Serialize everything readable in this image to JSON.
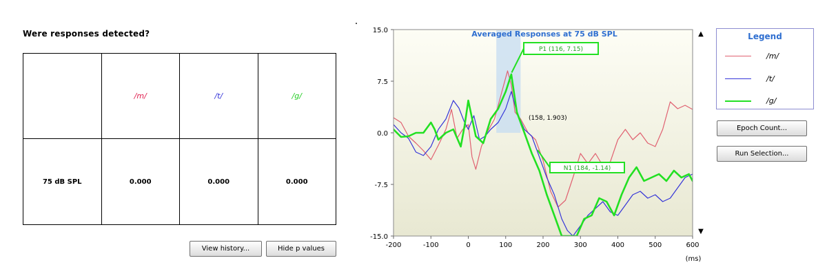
{
  "responses_panel": {
    "title": "Were responses detected?",
    "columns": [
      "",
      "/m/",
      "/t/",
      "/g/"
    ],
    "row_label": "75 dB SPL",
    "values": [
      "0.000",
      "0.000",
      "0.000"
    ]
  },
  "buttons": {
    "view_history": "View history...",
    "hide_p_values": "Hide p values",
    "epoch_count": "Epoch Count...",
    "run_selection": "Run Selection..."
  },
  "legend": {
    "title": "Legend",
    "items": [
      {
        "label": "/m/",
        "color": "#e06070"
      },
      {
        "label": "/t/",
        "color": "#3434d8"
      },
      {
        "label": "/g/",
        "color": "#22e022"
      }
    ]
  },
  "colors": {
    "m": "#e06070",
    "t": "#3434d8",
    "g": "#22e022",
    "chart_title": "#2f6fd0",
    "plot_bg_top": "#fdfdf5",
    "plot_bg_bottom": "#e8e8d2",
    "highlight": "#c6dcf2"
  },
  "scroll_icons": {
    "up": "▲",
    "down": "▼"
  },
  "chart_data": {
    "type": "line",
    "title": "Averaged Responses at 75 dB SPL",
    "xlabel": "(ms)",
    "ylabel": "",
    "xlim": [
      -200,
      600
    ],
    "ylim": [
      -15.0,
      15.0
    ],
    "xticks": [
      -200,
      -100,
      0,
      100,
      200,
      300,
      400,
      500,
      600
    ],
    "yticks": [
      -15.0,
      -7.5,
      0.0,
      7.5,
      15.0
    ],
    "ytick_labels": [
      "-15.0",
      "-7.5",
      "0.0",
      "7.5",
      "15.0"
    ],
    "highlight_region": [
      75,
      140
    ],
    "series": [
      {
        "name": "/m/",
        "color": "#e06070",
        "width": 1.2,
        "x": [
          -200,
          -180,
          -160,
          -140,
          -120,
          -100,
          -80,
          -60,
          -45,
          -30,
          -15,
          0,
          10,
          20,
          35,
          50,
          70,
          90,
          105,
          115,
          125,
          140,
          160,
          180,
          200,
          220,
          240,
          260,
          280,
          300,
          320,
          340,
          360,
          380,
          400,
          420,
          440,
          460,
          480,
          500,
          520,
          540,
          560,
          580,
          600
        ],
        "y": [
          2.2,
          1.5,
          -0.5,
          -1.5,
          -2.6,
          -3.9,
          -1.8,
          0.5,
          3.4,
          -0.8,
          0.5,
          1.2,
          -3.5,
          -5.3,
          -2.0,
          0.0,
          2.0,
          6.0,
          9.0,
          7.0,
          3.0,
          2.0,
          0.0,
          -1.0,
          -4.0,
          -8.5,
          -10.8,
          -9.8,
          -6.5,
          -3.0,
          -4.5,
          -3.0,
          -4.8,
          -4.2,
          -1.0,
          0.5,
          -1.0,
          0.0,
          -1.5,
          -2.0,
          0.5,
          4.5,
          3.5,
          4.0,
          3.4
        ]
      },
      {
        "name": "/t/",
        "color": "#3434d8",
        "width": 1.2,
        "x": [
          -200,
          -180,
          -160,
          -140,
          -120,
          -100,
          -80,
          -60,
          -40,
          -25,
          -10,
          0,
          15,
          30,
          45,
          60,
          80,
          100,
          115,
          130,
          150,
          170,
          190,
          210,
          230,
          250,
          265,
          280,
          300,
          320,
          340,
          360,
          380,
          400,
          420,
          440,
          460,
          480,
          500,
          520,
          540,
          560,
          580,
          600
        ],
        "y": [
          1.2,
          0.0,
          -0.8,
          -2.8,
          -3.3,
          -2.0,
          0.5,
          2.0,
          4.7,
          3.6,
          1.5,
          0.5,
          2.5,
          -1.0,
          -0.5,
          0.5,
          1.5,
          3.5,
          6.0,
          3.0,
          0.5,
          -0.5,
          -3.5,
          -6.5,
          -9.0,
          -12.5,
          -14.2,
          -15.0,
          -13.5,
          -12.0,
          -11.0,
          -10.0,
          -11.5,
          -12.0,
          -10.5,
          -9.0,
          -8.5,
          -9.5,
          -9.0,
          -10.0,
          -9.5,
          -8.0,
          -6.5,
          -6.0
        ]
      },
      {
        "name": "/g/",
        "color": "#22e022",
        "width": 2.6,
        "x": [
          -200,
          -180,
          -160,
          -140,
          -120,
          -100,
          -90,
          -80,
          -60,
          -40,
          -20,
          -10,
          0,
          20,
          40,
          60,
          80,
          100,
          115,
          130,
          150,
          170,
          190,
          210,
          230,
          250,
          270,
          290,
          310,
          330,
          350,
          370,
          390,
          410,
          430,
          450,
          470,
          490,
          510,
          530,
          550,
          570,
          590,
          600
        ],
        "y": [
          0.5,
          -0.6,
          -0.5,
          0.0,
          0.0,
          1.5,
          0.5,
          -1.0,
          0.0,
          0.5,
          -2.0,
          1.0,
          4.7,
          -0.5,
          -1.5,
          2.0,
          3.5,
          6.0,
          8.5,
          3.0,
          0.0,
          -3.0,
          -5.5,
          -9.0,
          -12.0,
          -15.0,
          -15.0,
          -15.0,
          -12.5,
          -12.0,
          -9.5,
          -10.0,
          -12.0,
          -9.0,
          -6.5,
          -5.0,
          -7.0,
          -6.5,
          -6.0,
          -7.0,
          -5.5,
          -6.5,
          -6.0,
          -7.0
        ]
      }
    ],
    "annotations": [
      {
        "text": "P1 (116, 7.15)",
        "x": 116,
        "y": 7.15,
        "boxed": true
      },
      {
        "text": "(158, 1.903)",
        "x": 158,
        "y": 1.903,
        "boxed": false
      },
      {
        "text": "N1 (184, -1.14)",
        "x": 184,
        "y": -1.14,
        "boxed": true
      }
    ]
  }
}
